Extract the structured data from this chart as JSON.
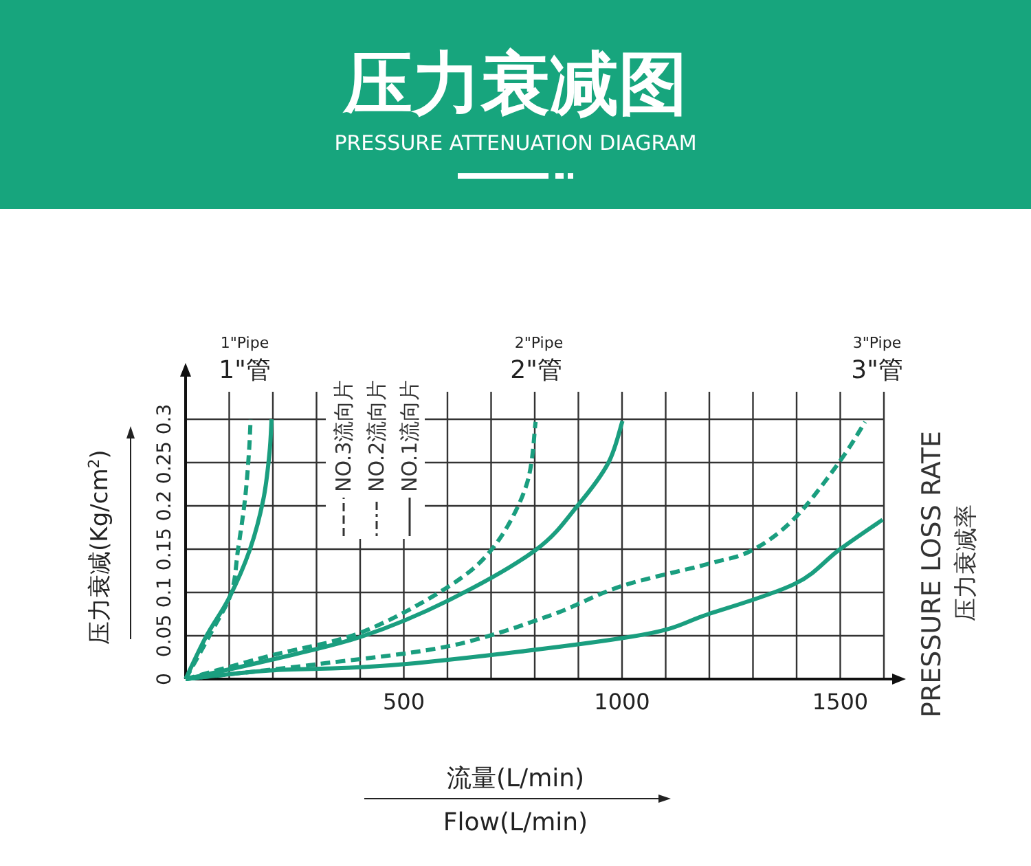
{
  "chart_data": {
    "type": "line",
    "title": "压力衰减图",
    "subtitle": "PRESSURE ATTENUATION DIAGRAM",
    "xlabel": "流量(L/min)",
    "ylabel": "压力衰减(Kg/cm$^{2}$)",
    "xlim": [
      0,
      1600
    ],
    "ylim": [
      0,
      0.3
    ],
    "xticks": [
      {
        "value": 0,
        "label": null
      },
      {
        "value": 100,
        "label": null
      },
      {
        "value": 200,
        "label": null
      },
      {
        "value": 300,
        "label": null
      },
      {
        "value": 400,
        "label": null
      },
      500,
      {
        "value": 600,
        "label": null
      },
      {
        "value": 700,
        "label": null
      },
      {
        "value": 800,
        "label": null
      },
      {
        "value": 900,
        "label": null
      },
      1000,
      {
        "value": 1100,
        "label": null
      },
      {
        "value": 1200,
        "label": null
      },
      {
        "value": 1300,
        "label": null
      },
      {
        "value": 1400,
        "label": null
      },
      1500,
      {
        "value": 1600,
        "label": null
      }
    ],
    "yticks": [
      0,
      0.05,
      0.1,
      0.15,
      0.2,
      0.25,
      0.3
    ],
    "grid": true,
    "marker": "none",
    "series": [
      {
        "color": "#1a9e7f",
        "line_style": "solid",
        "x": [
          0,
          47,
          100,
          147,
          178,
          192,
          197
        ],
        "values": [
          0,
          0.049,
          0.094,
          0.149,
          0.207,
          0.26,
          0.3
        ]
      },
      {
        "color": "#1a9e7f",
        "line_style": "dashed",
        "x": [
          0,
          60,
          105,
          120,
          136,
          145,
          149
        ],
        "values": [
          0,
          0.055,
          0.1,
          0.149,
          0.207,
          0.26,
          0.3
        ]
      },
      {
        "color": "#1a9e7f",
        "line_style": "dashed",
        "x": [
          0,
          194,
          403,
          603,
          708,
          781,
          802
        ],
        "values": [
          0,
          0.027,
          0.054,
          0.107,
          0.154,
          0.224,
          0.297
        ]
      },
      {
        "color": "#1a9e7f",
        "line_style": "solid",
        "x": [
          0,
          194,
          403,
          603,
          802,
          901,
          969,
          1001
        ],
        "values": [
          0,
          0.022,
          0.049,
          0.091,
          0.149,
          0.202,
          0.25,
          0.298
        ]
      },
      {
        "color": "#1a9e7f",
        "line_style": "dashed",
        "x": [
          0,
          299,
          603,
          833,
          997,
          1198,
          1299,
          1396,
          1497,
          1557
        ],
        "values": [
          0,
          0.017,
          0.038,
          0.073,
          0.107,
          0.133,
          0.149,
          0.186,
          0.25,
          0.297
        ]
      },
      {
        "color": "#1a9e7f",
        "line_style": "solid",
        "x": [
          0,
          194,
          497,
          1022,
          1198,
          1396,
          1497,
          1597
        ],
        "values": [
          0,
          0.01,
          0.017,
          0.049,
          0.075,
          0.11,
          0.149,
          0.184
        ]
      }
    ],
    "annotations": [
      "1\"Pipe",
      "1\"管",
      "2\"Pipe",
      "2\"管",
      "3\"Pipe",
      "3\"管",
      "NO.3流向片",
      "NO.2流向片",
      "NO.1流向片",
      "PRESSURE LOSS RATE",
      "压力衰减率",
      "Flow(L/min)"
    ]
  }
}
